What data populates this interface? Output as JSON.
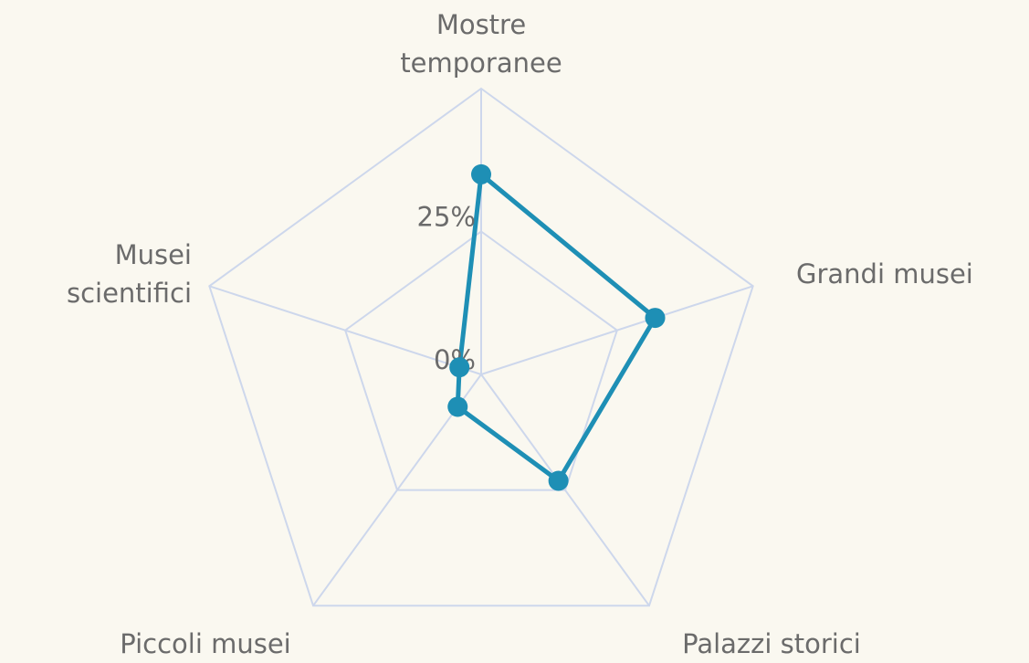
{
  "chart_data": {
    "type": "radar",
    "categories": [
      "Mostre temporanee",
      "Grandi musei",
      "Palazzi storici",
      "Piccoli musei",
      "Musei scientifici"
    ],
    "series": [
      {
        "color": "#1e8fb5",
        "values": [
          35,
          32,
          23,
          7,
          4
        ]
      }
    ],
    "ylim": [
      0,
      50
    ],
    "yticks": [
      {
        "value": 0,
        "label": "0%"
      },
      {
        "value": 25,
        "label": "25%"
      }
    ],
    "grid": true,
    "grid_color": "#cdd7ec"
  }
}
